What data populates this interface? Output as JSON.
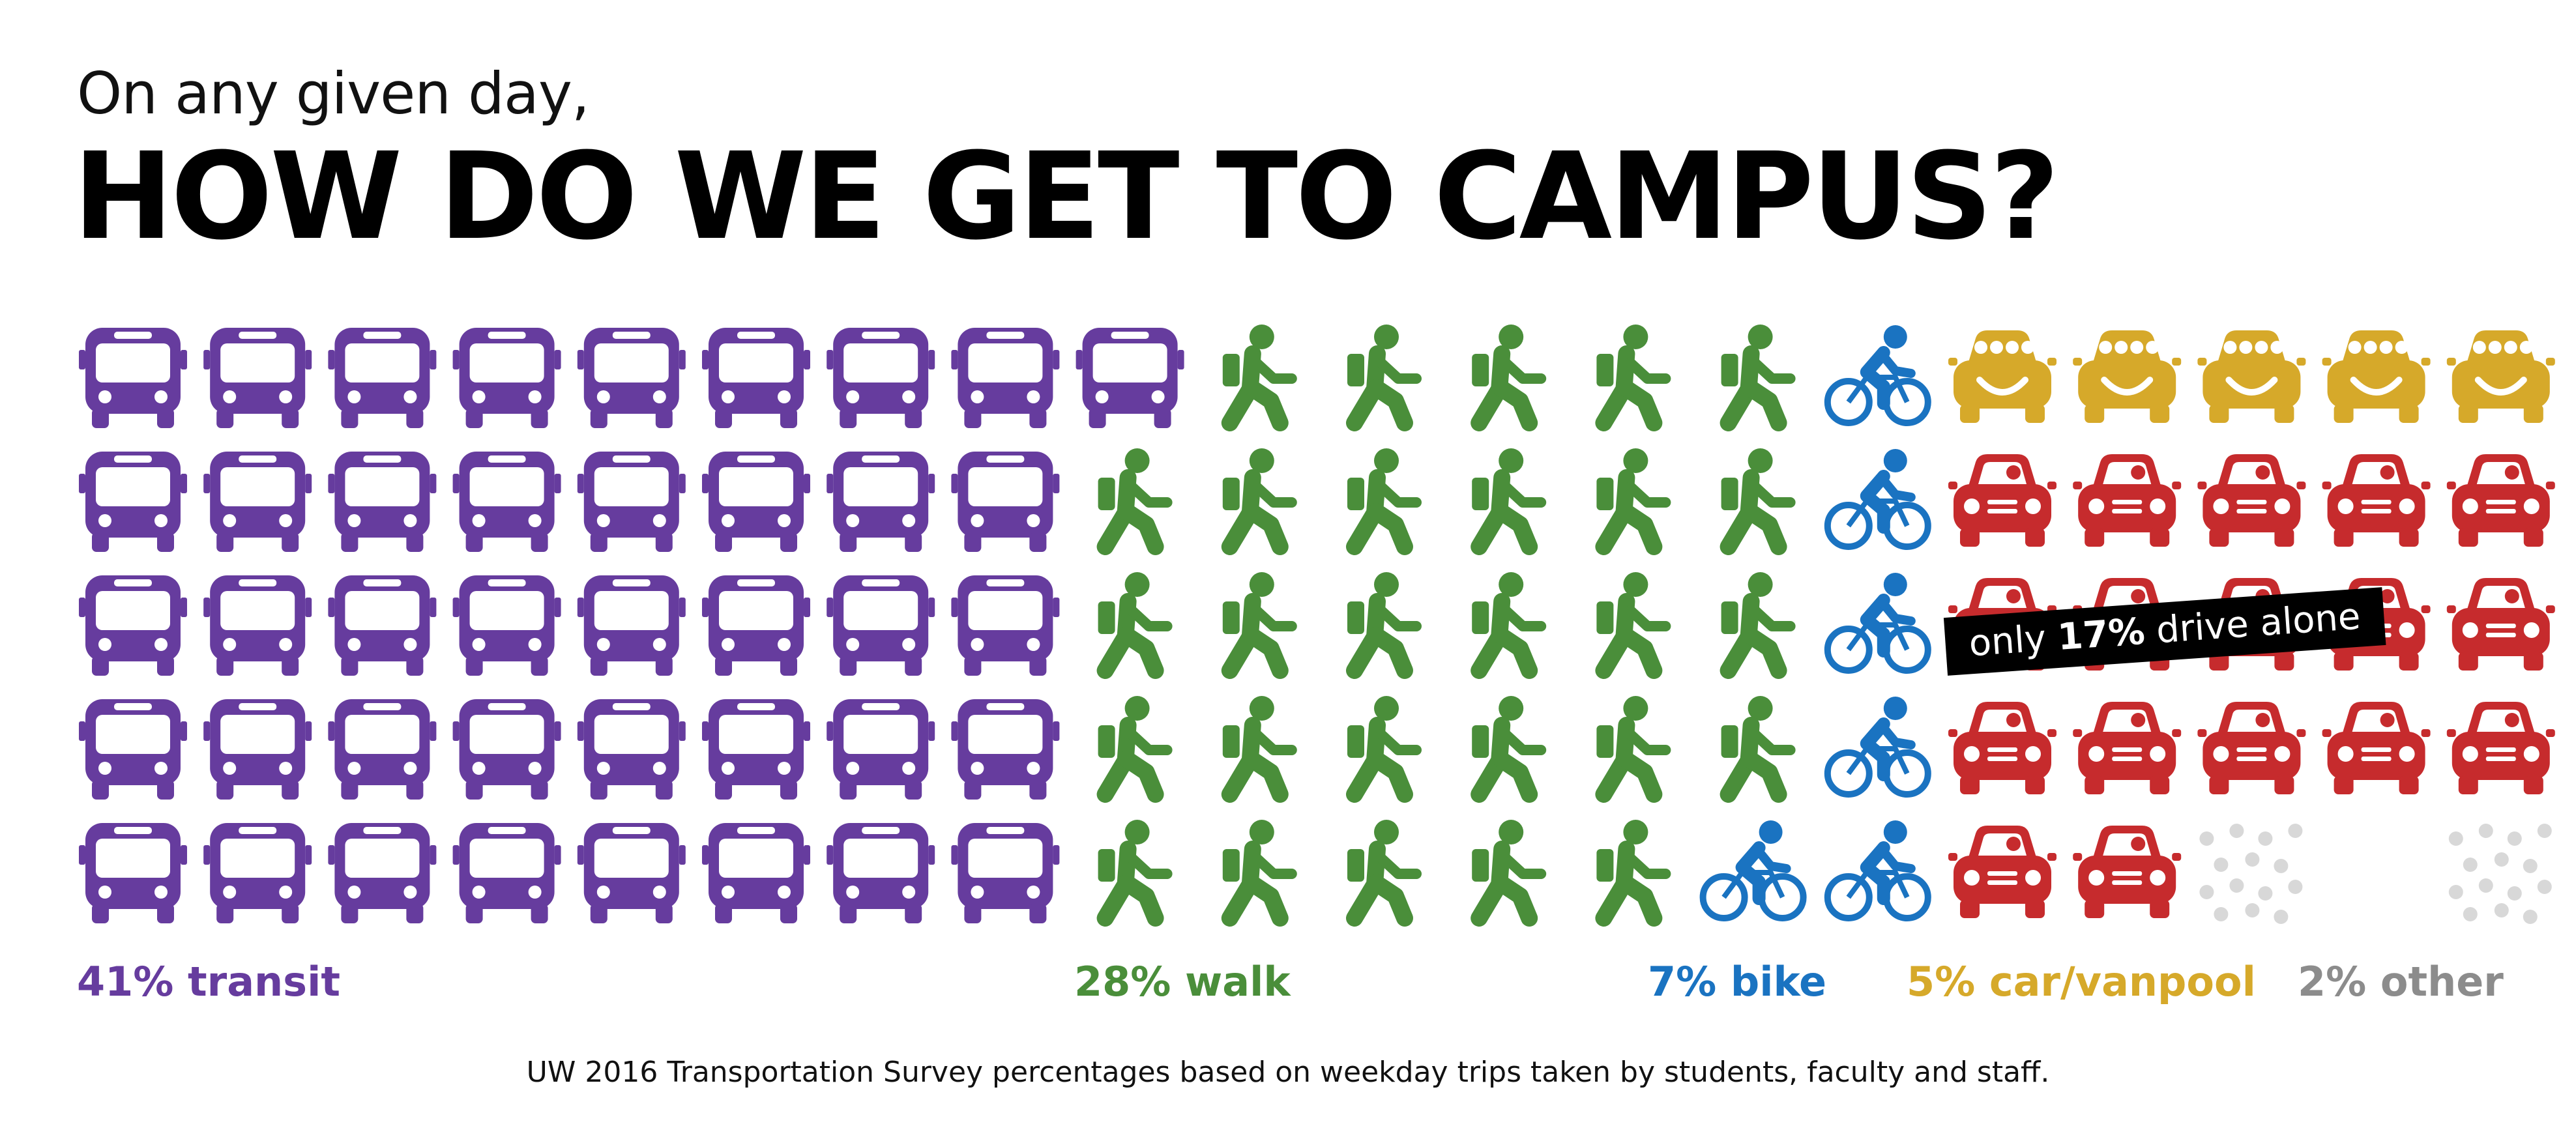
{
  "intro": "On any given day,",
  "title": "HOW DO WE GET TO CAMPUS?",
  "banner": {
    "prefix": "only ",
    "highlight": "17%",
    "suffix": " drive alone"
  },
  "footer": "UW 2016 Transportation Survey percentages based on weekday trips taken by students, faculty and staff.",
  "colors": {
    "transit": "#663c9e",
    "walk": "#4a8e3a",
    "bike": "#1a73c1",
    "carpool": "#d6a92a",
    "drive_alone": "#c62b2d",
    "other": "#8c8c8c",
    "other_dots": "#d8d8d8"
  },
  "chart_data": {
    "type": "icon-array",
    "grid": {
      "columns": 20,
      "rows": 5,
      "units_per_icon": 1
    },
    "categories": [
      {
        "key": "transit",
        "label": "41% transit",
        "value": 41,
        "icon": "bus-icon",
        "color": "#663c9e"
      },
      {
        "key": "walk",
        "label": "28% walk",
        "value": 28,
        "icon": "pedestrian-icon",
        "color": "#4a8e3a"
      },
      {
        "key": "bike",
        "label": "7% bike",
        "value": 7,
        "icon": "bicycle-icon",
        "color": "#1a73c1"
      },
      {
        "key": "carpool",
        "label": "5% car/vanpool",
        "value": 5,
        "icon": "smiling-car-icon",
        "color": "#d6a92a"
      },
      {
        "key": "drive_alone",
        "label": "only 17% drive alone",
        "value": 17,
        "icon": "car-icon",
        "color": "#c62b2d"
      },
      {
        "key": "other",
        "label": "2% other",
        "value": 2,
        "icon": "dots-icon",
        "color": "#8c8c8c"
      }
    ]
  }
}
